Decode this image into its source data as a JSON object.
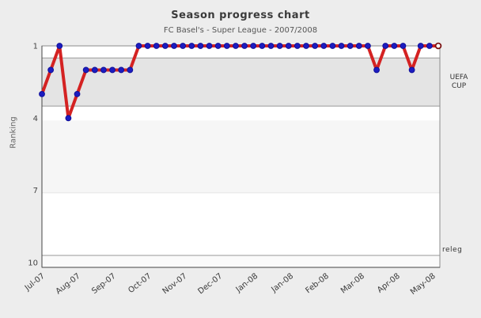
{
  "page": {
    "background_color": "#ededed"
  },
  "chart_data": {
    "type": "line",
    "title": "Season progress chart",
    "subtitle": "FC Basel's - Super League - 2007/2008",
    "ylabel": "Ranking",
    "xlabel": "",
    "legend": "none",
    "grid": "horizontal-bands",
    "y_inverted": true,
    "y_ticks": [
      1,
      4,
      7,
      10
    ],
    "y_range": [
      1,
      10.2
    ],
    "x_tick_labels": [
      "Jul-07",
      "Aug-07",
      "Sep-07",
      "Oct-07",
      "Nov-07",
      "Dec-07",
      "Jan-08",
      "Jan-08",
      "Feb-08",
      "Mar-08",
      "Apr-08",
      "May-08"
    ],
    "series": [
      {
        "name": "ranking",
        "values": [
          3,
          2,
          1,
          4,
          3,
          2,
          2,
          2,
          2,
          2,
          2,
          1,
          1,
          1,
          1,
          1,
          1,
          1,
          1,
          1,
          1,
          1,
          1,
          1,
          1,
          1,
          1,
          1,
          1,
          1,
          1,
          1,
          1,
          1,
          1,
          1,
          1,
          1,
          2,
          1,
          1,
          1,
          2,
          1,
          1,
          1
        ]
      }
    ],
    "final_marker": "open-circle",
    "zones": [
      {
        "from": 1.0,
        "to": 1.5,
        "color": "#ffffff",
        "label": ""
      },
      {
        "from": 1.5,
        "to": 3.5,
        "color": "#e4e4e4",
        "label": "UEFA CUP"
      },
      {
        "from": 3.5,
        "to": 4.1,
        "color": "#ffffff",
        "label": ""
      },
      {
        "from": 4.1,
        "to": 7.1,
        "color": "#f6f6f6",
        "label": ""
      },
      {
        "from": 7.1,
        "to": 9.7,
        "color": "#ffffff",
        "label": ""
      },
      {
        "from": 9.7,
        "to": 10.2,
        "color": "#fafafa",
        "label": "releg"
      }
    ],
    "gridlines": [
      {
        "rank": 1.5,
        "color": "#999999"
      },
      {
        "rank": 3.5,
        "color": "#999999"
      },
      {
        "rank": 7.1,
        "color": "#e6e6e6"
      },
      {
        "rank": 9.7,
        "color": "#999999"
      }
    ],
    "annotations": {
      "uefa_cup_line1": "UEFA",
      "uefa_cup_line2": "CUP",
      "releg": "releg"
    },
    "colors": {
      "line": "#d42222",
      "marker_fill": "#1c1cc0",
      "marker_edge": "#10109a",
      "final_marker_ring": "#7a1010",
      "final_marker_fill": "#ffffff",
      "grid": "#999999",
      "plot_border": "#8c8c8c",
      "axis": "#444444",
      "tick_text": "#444444",
      "background": "#ededed"
    }
  }
}
